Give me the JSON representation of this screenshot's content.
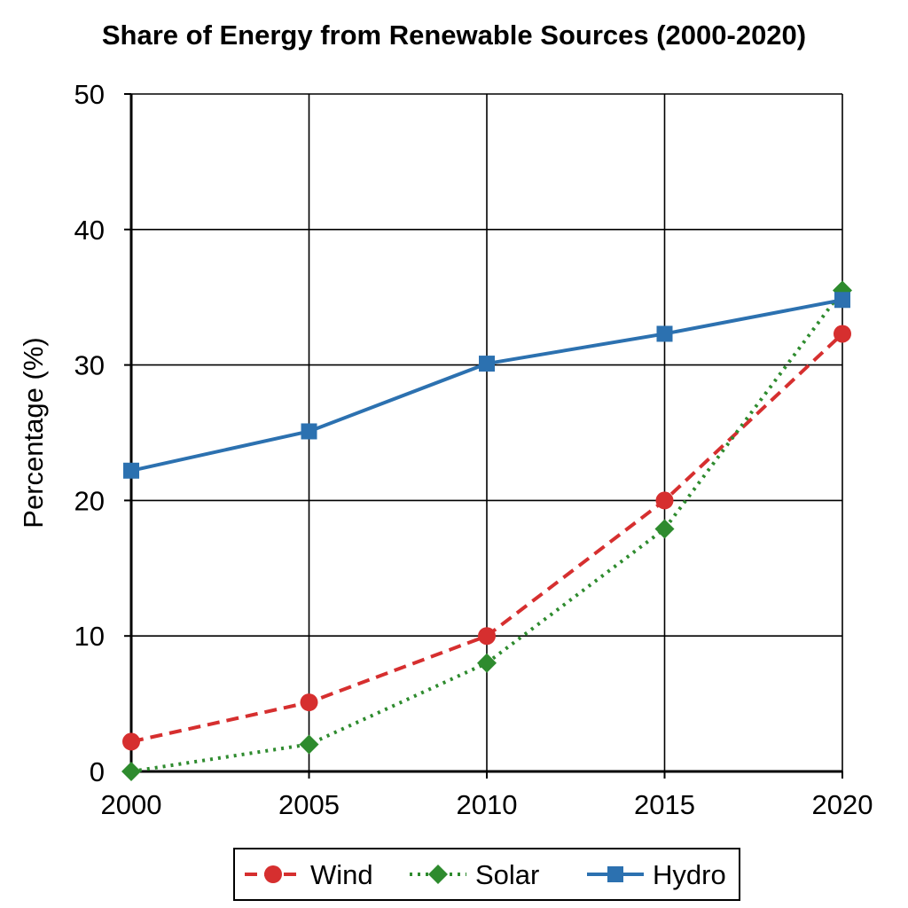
{
  "chart_data": {
    "type": "line",
    "title": "Share of Energy from Renewable Sources (2000-2020)",
    "xlabel": "",
    "ylabel": "Percentage (%)",
    "x": [
      2000,
      2005,
      2010,
      2015,
      2020
    ],
    "x_tick_labels": [
      "2000",
      "2005",
      "2010",
      "2015",
      "2020"
    ],
    "xlim": [
      2000,
      2020
    ],
    "ylim": [
      0,
      50
    ],
    "y_ticks": [
      0,
      10,
      20,
      30,
      40,
      50
    ],
    "y_tick_labels": [
      "0",
      "10",
      "20",
      "30",
      "40",
      "50"
    ],
    "grid": true,
    "legend_position": "bottom-center",
    "series": [
      {
        "name": "Wind",
        "values": [
          2.2,
          5.1,
          10.0,
          20.0,
          32.3
        ],
        "color": "#d62f2f",
        "line_style": "dashed",
        "marker": "circle"
      },
      {
        "name": "Solar",
        "values": [
          0.0,
          2.0,
          8.0,
          17.9,
          35.5
        ],
        "color": "#2e8b2e",
        "line_style": "dotted",
        "marker": "diamond"
      },
      {
        "name": "Hydro",
        "values": [
          22.2,
          25.1,
          30.1,
          32.3,
          34.8
        ],
        "color": "#2c71b0",
        "line_style": "solid",
        "marker": "square"
      }
    ]
  }
}
